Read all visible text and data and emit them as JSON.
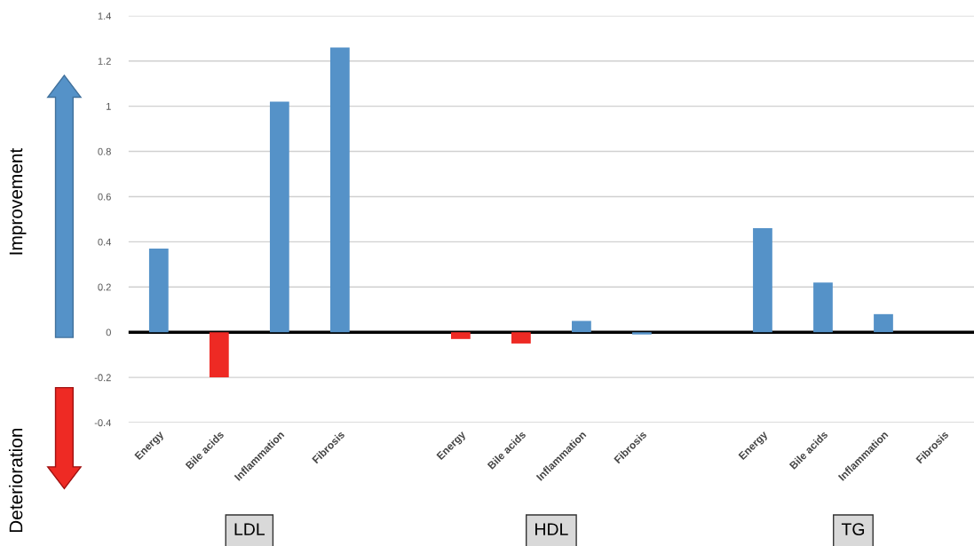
{
  "chart_data": {
    "type": "bar",
    "categories": [
      "Energy",
      "Bile acids",
      "Inflammation",
      "Fibrosis",
      null,
      "Energy",
      "Bile acids",
      "Inflammation",
      "Fibrosis",
      null,
      "Energy",
      "Bile acids",
      "Inflammation",
      "Fibrosis"
    ],
    "values": [
      0.37,
      -0.2,
      1.02,
      1.26,
      null,
      -0.03,
      -0.05,
      0.05,
      -0.01,
      null,
      0.46,
      0.22,
      0.08,
      0
    ],
    "colors": [
      "#5592c8",
      "#ee2a24",
      "#5592c8",
      "#5592c8",
      "#5592c8",
      "#ee2a24",
      "#ee2a24",
      "#5592c8",
      "#5592c8",
      "#5592c8",
      "#5592c8",
      "#5592c8",
      "#5592c8",
      "#5592c8"
    ],
    "ylim": [
      -0.4,
      1.4
    ],
    "yticks": [
      -0.4,
      -0.2,
      0,
      0.2,
      0.4,
      0.6,
      0.8,
      1,
      1.2,
      1.4
    ],
    "grid": "y",
    "annotations": [
      "Improvement",
      "Deterioration",
      "LDL",
      "HDL",
      "TG"
    ]
  }
}
